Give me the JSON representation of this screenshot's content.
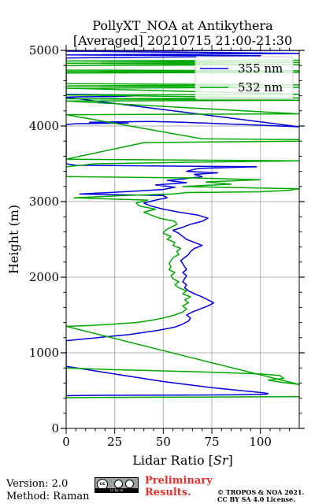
{
  "chart_data": {
    "type": "line",
    "title_line1": "PollyXT_NOA at Antikythera",
    "title_line2": "[Averaged] 20210715 21:00-21:30",
    "xlabel": "Lidar Ratio [$Sr$]",
    "xlabel_plain": "Lidar Ratio [",
    "xlabel_unit": "Sr",
    "xlabel_close": "]",
    "ylabel": "Height (m)",
    "xlim": [
      0,
      120
    ],
    "ylim": [
      0,
      5000
    ],
    "xticks": [
      0,
      25,
      50,
      75,
      100
    ],
    "yticks": [
      0,
      1000,
      2000,
      3000,
      4000,
      5000
    ],
    "grid": true,
    "legend_position": "top-right",
    "series": [
      {
        "name": "355 nm",
        "color": "#0000dd",
        "points": [
          [
            0,
            820
          ],
          [
            8,
            790
          ],
          [
            20,
            740
          ],
          [
            35,
            680
          ],
          [
            50,
            620
          ],
          [
            62,
            580
          ],
          [
            75,
            540
          ],
          [
            88,
            505
          ],
          [
            98,
            480
          ],
          [
            104,
            462
          ],
          [
            103,
            452
          ],
          [
            85,
            444
          ],
          [
            50,
            440
          ],
          [
            10,
            436
          ],
          [
            0,
            432
          ],
          [
            0,
            1160
          ],
          [
            8,
            1180
          ],
          [
            20,
            1210
          ],
          [
            32,
            1240
          ],
          [
            40,
            1270
          ],
          [
            48,
            1300
          ],
          [
            56,
            1340
          ],
          [
            60,
            1380
          ],
          [
            63,
            1420
          ],
          [
            64,
            1460
          ],
          [
            62,
            1500
          ],
          [
            65,
            1540
          ],
          [
            69,
            1580
          ],
          [
            73,
            1620
          ],
          [
            76,
            1660
          ],
          [
            73,
            1700
          ],
          [
            70,
            1740
          ],
          [
            66,
            1780
          ],
          [
            63,
            1820
          ],
          [
            61,
            1860
          ],
          [
            62,
            1900
          ],
          [
            60,
            1940
          ],
          [
            61,
            1980
          ],
          [
            62,
            2020
          ],
          [
            60,
            2060
          ],
          [
            62,
            2100
          ],
          [
            61,
            2140
          ],
          [
            60,
            2180
          ],
          [
            59,
            2220
          ],
          [
            61,
            2260
          ],
          [
            63,
            2300
          ],
          [
            64,
            2340
          ],
          [
            66,
            2380
          ],
          [
            70,
            2420
          ],
          [
            66,
            2460
          ],
          [
            62,
            2500
          ],
          [
            60,
            2540
          ],
          [
            58,
            2580
          ],
          [
            55,
            2620
          ],
          [
            60,
            2660
          ],
          [
            64,
            2700
          ],
          [
            70,
            2740
          ],
          [
            73,
            2780
          ],
          [
            68,
            2820
          ],
          [
            58,
            2860
          ],
          [
            50,
            2900
          ],
          [
            44,
            2940
          ],
          [
            40,
            2980
          ],
          [
            46,
            3020
          ],
          [
            52,
            3050
          ],
          [
            50,
            3080
          ],
          [
            7,
            3100
          ],
          [
            30,
            3130
          ],
          [
            50,
            3160
          ],
          [
            56,
            3190
          ],
          [
            46,
            3220
          ],
          [
            62,
            3250
          ],
          [
            52,
            3280
          ],
          [
            60,
            3300
          ],
          [
            70,
            3330
          ],
          [
            66,
            3360
          ],
          [
            78,
            3380
          ],
          [
            62,
            3400
          ],
          [
            68,
            3440
          ],
          [
            98,
            3460
          ],
          [
            5,
            3480
          ],
          [
            0,
            3500
          ],
          [
            0,
            4020
          ],
          [
            5,
            4030
          ],
          [
            32,
            4040
          ],
          [
            12,
            4050
          ],
          [
            44,
            4060
          ],
          [
            60,
            4050
          ],
          [
            80,
            4030
          ],
          [
            100,
            4010
          ],
          [
            120,
            3990
          ],
          [
            0,
            4380
          ],
          [
            5,
            4385
          ],
          [
            24,
            4390
          ],
          [
            38,
            4400
          ],
          [
            30,
            4410
          ],
          [
            0,
            4420
          ],
          [
            0,
            4900
          ],
          [
            40,
            4910
          ],
          [
            85,
            4920
          ],
          [
            100,
            4930
          ],
          [
            0,
            4940
          ],
          [
            120,
            4960
          ],
          [
            0,
            4990
          ],
          [
            120,
            5000
          ]
        ]
      },
      {
        "name": "532 nm",
        "color": "#00a800",
        "points": [
          [
            120,
            420
          ],
          [
            100,
            418
          ],
          [
            60,
            414
          ],
          [
            20,
            410
          ],
          [
            0,
            406
          ],
          [
            0,
            800
          ],
          [
            20,
            780
          ],
          [
            50,
            760
          ],
          [
            80,
            740
          ],
          [
            100,
            720
          ],
          [
            110,
            700
          ],
          [
            112,
            660
          ],
          [
            104,
            640
          ],
          [
            108,
            620
          ],
          [
            114,
            600
          ],
          [
            120,
            580
          ],
          [
            0,
            1350
          ],
          [
            12,
            1360
          ],
          [
            25,
            1380
          ],
          [
            36,
            1400
          ],
          [
            44,
            1430
          ],
          [
            50,
            1460
          ],
          [
            56,
            1500
          ],
          [
            60,
            1540
          ],
          [
            62,
            1580
          ],
          [
            60,
            1620
          ],
          [
            63,
            1660
          ],
          [
            61,
            1700
          ],
          [
            64,
            1740
          ],
          [
            60,
            1780
          ],
          [
            62,
            1820
          ],
          [
            58,
            1860
          ],
          [
            56,
            1900
          ],
          [
            58,
            1940
          ],
          [
            55,
            1980
          ],
          [
            54,
            2020
          ],
          [
            56,
            2060
          ],
          [
            53,
            2100
          ],
          [
            54,
            2140
          ],
          [
            53,
            2180
          ],
          [
            54,
            2220
          ],
          [
            55,
            2260
          ],
          [
            58,
            2300
          ],
          [
            57,
            2340
          ],
          [
            59,
            2380
          ],
          [
            55,
            2420
          ],
          [
            56,
            2460
          ],
          [
            52,
            2500
          ],
          [
            54,
            2540
          ],
          [
            50,
            2580
          ],
          [
            51,
            2620
          ],
          [
            54,
            2660
          ],
          [
            57,
            2700
          ],
          [
            56,
            2740
          ],
          [
            48,
            2780
          ],
          [
            44,
            2820
          ],
          [
            40,
            2860
          ],
          [
            46,
            2900
          ],
          [
            38,
            2940
          ],
          [
            36,
            2980
          ],
          [
            42,
            3020
          ],
          [
            4,
            3050
          ],
          [
            30,
            3080
          ],
          [
            55,
            3100
          ],
          [
            62,
            3120
          ],
          [
            100,
            3130
          ],
          [
            115,
            3150
          ],
          [
            120,
            3170
          ],
          [
            60,
            3200
          ],
          [
            85,
            3230
          ],
          [
            72,
            3260
          ],
          [
            100,
            3290
          ],
          [
            70,
            3310
          ],
          [
            0,
            3330
          ],
          [
            0,
            3460
          ],
          [
            15,
            3500
          ],
          [
            60,
            3520
          ],
          [
            120,
            3540
          ],
          [
            0,
            3560
          ],
          [
            40,
            3780
          ],
          [
            120,
            3800
          ],
          [
            120,
            3820
          ],
          [
            70,
            3830
          ],
          [
            0,
            4150
          ],
          [
            120,
            4160
          ],
          [
            0,
            4330
          ],
          [
            120,
            4340
          ],
          [
            0,
            4360
          ],
          [
            120,
            4370
          ],
          [
            0,
            4410
          ],
          [
            120,
            4420
          ],
          [
            0,
            4500
          ],
          [
            120,
            4510
          ],
          [
            0,
            4530
          ],
          [
            120,
            4545
          ],
          [
            0,
            4560
          ],
          [
            0,
            4700
          ],
          [
            120,
            4710
          ],
          [
            0,
            4720
          ],
          [
            120,
            4730
          ],
          [
            0,
            4740
          ],
          [
            0,
            4800
          ],
          [
            120,
            4810
          ],
          [
            0,
            4830
          ],
          [
            120,
            4840
          ],
          [
            0,
            4860
          ],
          [
            120,
            4870
          ]
        ]
      }
    ]
  },
  "footer": {
    "version": "Version: 2.0",
    "method": "Method: Raman",
    "cc_badge": "cc by sa",
    "preliminary_line1": "Preliminary",
    "preliminary_line2": "Results.",
    "copyright_line1": "© TROPOS & NOA 2021.",
    "copyright_line2": "CC BY SA 4.0 License."
  },
  "colors": {
    "grid": "#b0b0b0",
    "preliminary": "#e8302a"
  }
}
